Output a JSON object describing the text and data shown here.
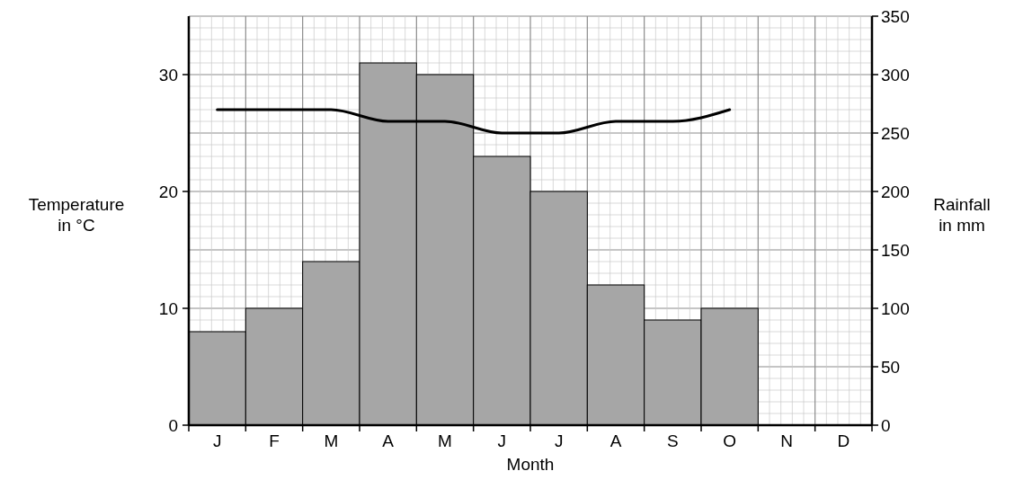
{
  "chart_data": {
    "type": "bar",
    "xlabel": "Month",
    "ylabel": "Temperature in °C",
    "y2label": "Rainfall in mm",
    "categories": [
      "J",
      "F",
      "M",
      "A",
      "M",
      "J",
      "J",
      "A",
      "S",
      "O",
      "N",
      "D"
    ],
    "series": [
      {
        "axis": "y2",
        "color": "#a6a6a6",
        "values": [
          80,
          100,
          140,
          310,
          300,
          230,
          200,
          120,
          90,
          100,
          null,
          null
        ]
      },
      {
        "type": "line",
        "axis": "y",
        "color": "#000000",
        "values": [
          27,
          27,
          27,
          26,
          26,
          25,
          25,
          26,
          26,
          27,
          null,
          null
        ]
      }
    ],
    "ylim": [
      0,
      35
    ],
    "yticks": [
      0,
      10,
      20,
      30
    ],
    "y2lim": [
      0,
      350
    ],
    "y2ticks": [
      0,
      50,
      100,
      150,
      200,
      250,
      300,
      350
    ],
    "grid": true,
    "marker": "none",
    "line_style": "solid"
  }
}
